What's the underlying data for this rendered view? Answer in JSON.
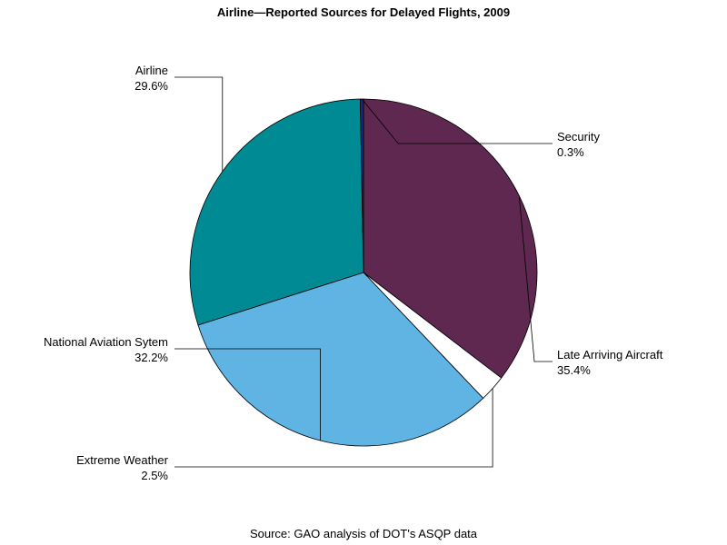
{
  "chart_data": {
    "type": "pie",
    "title": "Airline—Reported Sources for Delayed Flights, 2009",
    "source": "Source: GAO analysis of DOT's ASQP data",
    "slices": [
      {
        "label": "Late Arriving Aircraft",
        "value": 35.4,
        "display": "35.4%",
        "color": "#5e2850"
      },
      {
        "label": "Extreme Weather",
        "value": 2.5,
        "display": "2.5%",
        "color": "#ffffff"
      },
      {
        "label": "National Aviation Sytem",
        "value": 32.2,
        "display": "32.2%",
        "color": "#5fb4e4"
      },
      {
        "label": "Airline",
        "value": 29.6,
        "display": "29.6%",
        "color": "#008b94"
      },
      {
        "label": "Security",
        "value": 0.3,
        "display": "0.3%",
        "color": "#1a2a7a"
      }
    ]
  }
}
